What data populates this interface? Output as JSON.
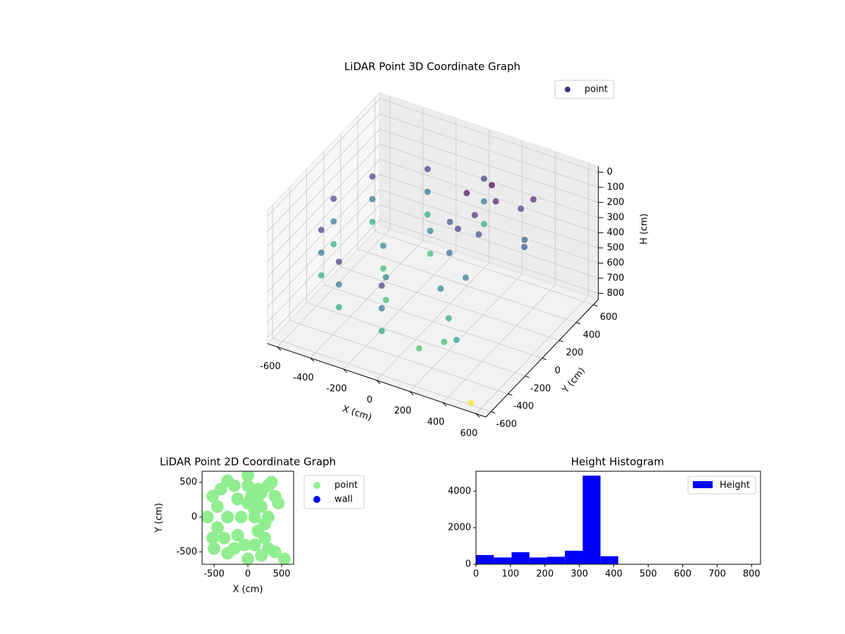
{
  "chart_data": [
    {
      "type": "scatter3d",
      "title": "LiDAR Point 3D Coordinate Graph",
      "xlabel": "X (cm)",
      "ylabel": "Y (cm)",
      "hlabel": "H (cm)",
      "xlim": [
        -660,
        660
      ],
      "ylim": [
        -660,
        660
      ],
      "hlim": [
        -40,
        840
      ],
      "h_inverted": true,
      "xticks": [
        -600,
        -400,
        -200,
        0,
        200,
        400,
        600
      ],
      "yticks": [
        -600,
        -400,
        -200,
        0,
        200,
        400,
        600
      ],
      "hticks": [
        0,
        100,
        200,
        300,
        400,
        500,
        600,
        700,
        800
      ],
      "grid": true,
      "legend": "upper right",
      "colormap": "viridis",
      "series": [
        {
          "name": "point",
          "color": "#472d7b",
          "x": [
            0,
            -300,
            -520,
            -600,
            -520,
            -300,
            0,
            0,
            -300,
            -520,
            -600,
            -520,
            -300,
            0,
            0,
            -300,
            -520,
            -600,
            -520,
            -300,
            0,
            -150,
            -300,
            -150,
            -150,
            -300,
            -150,
            50,
            150,
            100,
            200,
            0,
            150,
            100,
            200,
            300,
            400,
            350,
            450,
            250,
            300,
            200,
            400,
            150,
            250,
            540
          ],
          "y": [
            600,
            520,
            300,
            0,
            -300,
            -520,
            -600,
            600,
            520,
            300,
            0,
            -300,
            -520,
            -600,
            600,
            520,
            300,
            0,
            -300,
            -520,
            -600,
            260,
            0,
            -260,
            260,
            0,
            -260,
            300,
            200,
            100,
            350,
            200,
            400,
            0,
            150,
            450,
            300,
            500,
            200,
            -300,
            -450,
            -550,
            -500,
            -200,
            -100,
            -600
          ],
          "h": [
            250,
            250,
            250,
            250,
            250,
            250,
            250,
            400,
            400,
            400,
            400,
            400,
            400,
            400,
            550,
            550,
            550,
            550,
            550,
            550,
            550,
            450,
            450,
            450,
            600,
            600,
            600,
            150,
            200,
            250,
            180,
            300,
            120,
            350,
            280,
            250,
            330,
            200,
            300,
            550,
            600,
            620,
            520,
            450,
            400,
            826
          ]
        }
      ]
    },
    {
      "type": "scatter",
      "title": "LiDAR Point 2D Coordinate Graph",
      "xlabel": "X (cm)",
      "ylabel": "Y (cm)",
      "xlim": [
        -677,
        677
      ],
      "ylim": [
        -677,
        657
      ],
      "xticks": [
        -500,
        0,
        500
      ],
      "yticks": [
        -500,
        0,
        500
      ],
      "legend": "outside right",
      "series": [
        {
          "name": "point",
          "color": "#90ee90",
          "x": [
            0,
            -300,
            -520,
            -600,
            -520,
            -300,
            0,
            -150,
            -300,
            -150,
            50,
            150,
            100,
            200,
            0,
            150,
            100,
            200,
            300,
            400,
            350,
            450,
            250,
            300,
            200,
            400,
            150,
            250,
            540,
            -450,
            -450,
            -400,
            -200,
            -200,
            -500,
            0,
            -50,
            -100,
            -350,
            100,
            300
          ],
          "y": [
            600,
            520,
            300,
            0,
            -300,
            -520,
            -600,
            260,
            0,
            -260,
            300,
            200,
            100,
            350,
            200,
            400,
            0,
            150,
            450,
            300,
            500,
            200,
            -300,
            -450,
            -550,
            -500,
            -200,
            -100,
            -600,
            150,
            -150,
            400,
            450,
            -450,
            -450,
            450,
            -400,
            0,
            -300,
            -400,
            0
          ]
        },
        {
          "name": "wall",
          "color": "#0000ff",
          "x": [],
          "y": []
        }
      ]
    },
    {
      "type": "histogram",
      "title": "Height Histogram",
      "bins": [
        0,
        51.6,
        103.3,
        154.9,
        206.5,
        258.1,
        309.8,
        361.4,
        413,
        464.6,
        516.3,
        567.9,
        619.5,
        671.1,
        722.8,
        774.4,
        826
      ],
      "series": [
        {
          "name": "Height",
          "color": "#0000ff",
          "values": [
            505,
            370,
            660,
            370,
            410,
            740,
            4850,
            440,
            0,
            0,
            0,
            0,
            0,
            0,
            0,
            0
          ]
        }
      ],
      "xlim": [
        0,
        826
      ],
      "ylim": [
        0,
        5090
      ],
      "xticks": [
        0,
        100,
        200,
        300,
        400,
        500,
        600,
        700,
        800
      ],
      "yticks": [
        0,
        2000,
        4000
      ],
      "legend": "upper right"
    }
  ]
}
